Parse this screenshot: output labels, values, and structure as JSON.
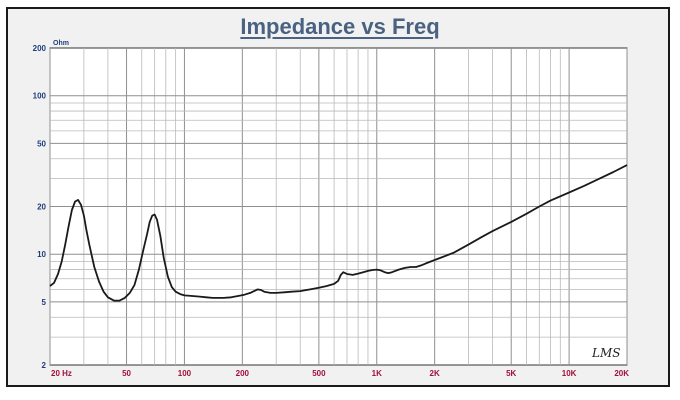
{
  "chart_data": {
    "type": "line",
    "title": "Impedance vs Freq",
    "y_unit_label": "Ohm",
    "x_scale": "log",
    "y_scale": "log",
    "xlim": [
      20,
      20000
    ],
    "ylim": [
      2,
      200
    ],
    "grid": true,
    "x_tick_labels": [
      {
        "value": 20,
        "label": "20 Hz"
      },
      {
        "value": 50,
        "label": "50"
      },
      {
        "value": 100,
        "label": "100"
      },
      {
        "value": 200,
        "label": "200"
      },
      {
        "value": 500,
        "label": "500"
      },
      {
        "value": 1000,
        "label": "1K"
      },
      {
        "value": 2000,
        "label": "2K"
      },
      {
        "value": 5000,
        "label": "5K"
      },
      {
        "value": 10000,
        "label": "10K"
      },
      {
        "value": 20000,
        "label": "20K"
      }
    ],
    "y_tick_labels": [
      {
        "value": 200,
        "label": "200"
      },
      {
        "value": 100,
        "label": "100"
      },
      {
        "value": 50,
        "label": "50"
      },
      {
        "value": 20,
        "label": "20"
      },
      {
        "value": 10,
        "label": "10"
      },
      {
        "value": 5,
        "label": "5"
      },
      {
        "value": 2,
        "label": "2"
      }
    ],
    "series": [
      {
        "color": "#1a1a1a",
        "points": [
          [
            20,
            6.3
          ],
          [
            21,
            6.6
          ],
          [
            22,
            7.5
          ],
          [
            23,
            9.0
          ],
          [
            24,
            11.5
          ],
          [
            25,
            15.0
          ],
          [
            26,
            19.0
          ],
          [
            27,
            21.5
          ],
          [
            28,
            22.0
          ],
          [
            29,
            20.5
          ],
          [
            30,
            17.5
          ],
          [
            31,
            14.0
          ],
          [
            32,
            11.5
          ],
          [
            34,
            8.3
          ],
          [
            36,
            6.7
          ],
          [
            38,
            5.8
          ],
          [
            40,
            5.35
          ],
          [
            43,
            5.1
          ],
          [
            46,
            5.1
          ],
          [
            49,
            5.3
          ],
          [
            52,
            5.7
          ],
          [
            55,
            6.4
          ],
          [
            58,
            8.0
          ],
          [
            61,
            10.5
          ],
          [
            64,
            13.5
          ],
          [
            66,
            16.0
          ],
          [
            68,
            17.5
          ],
          [
            70,
            17.8
          ],
          [
            72,
            16.5
          ],
          [
            75,
            13.0
          ],
          [
            78,
            9.5
          ],
          [
            82,
            7.2
          ],
          [
            86,
            6.2
          ],
          [
            90,
            5.8
          ],
          [
            95,
            5.6
          ],
          [
            100,
            5.5
          ],
          [
            110,
            5.45
          ],
          [
            120,
            5.4
          ],
          [
            130,
            5.35
          ],
          [
            140,
            5.3
          ],
          [
            150,
            5.3
          ],
          [
            160,
            5.3
          ],
          [
            175,
            5.35
          ],
          [
            190,
            5.45
          ],
          [
            205,
            5.55
          ],
          [
            220,
            5.7
          ],
          [
            240,
            6.0
          ],
          [
            250,
            5.95
          ],
          [
            260,
            5.8
          ],
          [
            280,
            5.7
          ],
          [
            300,
            5.7
          ],
          [
            330,
            5.75
          ],
          [
            360,
            5.8
          ],
          [
            400,
            5.85
          ],
          [
            450,
            6.0
          ],
          [
            500,
            6.15
          ],
          [
            550,
            6.3
          ],
          [
            600,
            6.5
          ],
          [
            630,
            6.8
          ],
          [
            650,
            7.4
          ],
          [
            670,
            7.7
          ],
          [
            700,
            7.5
          ],
          [
            750,
            7.4
          ],
          [
            800,
            7.55
          ],
          [
            850,
            7.7
          ],
          [
            900,
            7.85
          ],
          [
            950,
            7.95
          ],
          [
            1000,
            8.0
          ],
          [
            1050,
            7.9
          ],
          [
            1100,
            7.7
          ],
          [
            1150,
            7.6
          ],
          [
            1200,
            7.7
          ],
          [
            1300,
            8.0
          ],
          [
            1400,
            8.2
          ],
          [
            1500,
            8.3
          ],
          [
            1600,
            8.3
          ],
          [
            1700,
            8.5
          ],
          [
            1800,
            8.75
          ],
          [
            2000,
            9.2
          ],
          [
            2200,
            9.6
          ],
          [
            2500,
            10.2
          ],
          [
            3000,
            11.5
          ],
          [
            3500,
            12.8
          ],
          [
            4000,
            14.0
          ],
          [
            5000,
            16.0
          ],
          [
            6000,
            18.0
          ],
          [
            7000,
            20.0
          ],
          [
            8000,
            21.8
          ],
          [
            10000,
            24.5
          ],
          [
            12000,
            27.0
          ],
          [
            14000,
            29.5
          ],
          [
            17000,
            33.0
          ],
          [
            20000,
            36.5
          ]
        ]
      }
    ],
    "annotations": [
      "LMS"
    ]
  }
}
